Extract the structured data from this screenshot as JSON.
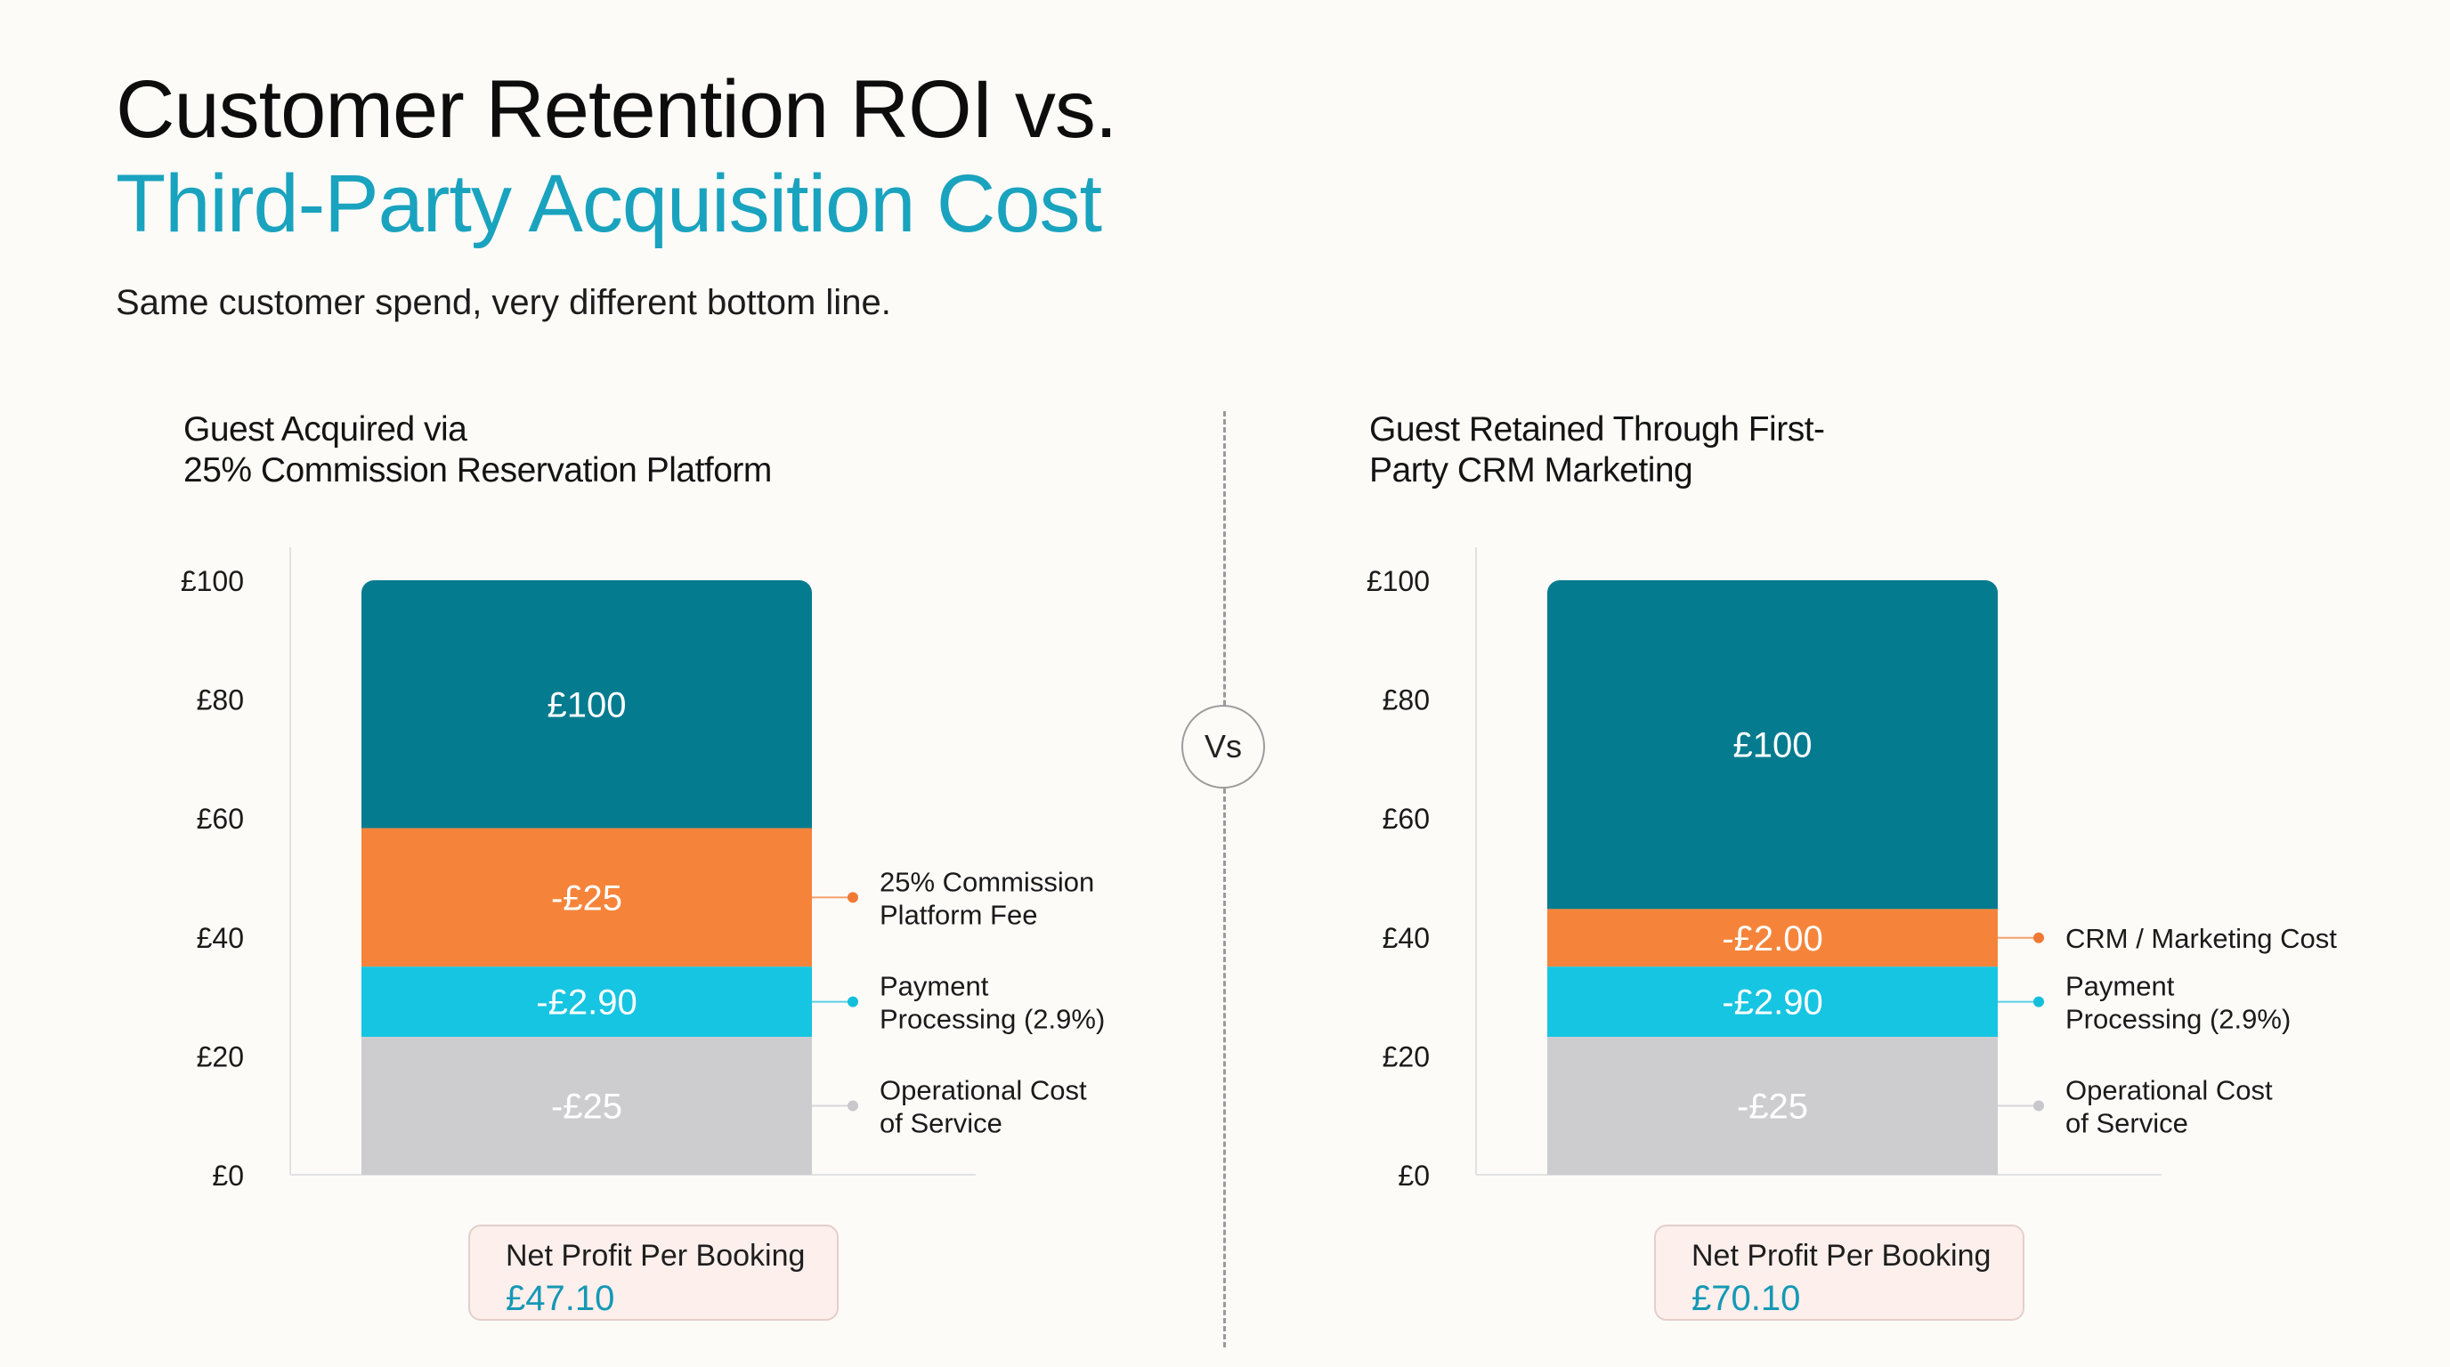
{
  "header": {
    "title_line1": "Customer Retention ROI vs.",
    "title_line2": "Third-Party Acquisition Cost",
    "subtitle": "Same customer spend, very different bottom line.",
    "vs_label": "Vs"
  },
  "colors": {
    "title_accent": "#1aa3be",
    "revenue": "#057b8f",
    "commission_or_crm": "#f5843a",
    "payment": "#16c5e2",
    "operational": "#cdcdd0",
    "net_profit_value": "#1598b5"
  },
  "chart_data": [
    {
      "type": "bar",
      "title": "Guest Acquired via 25% Commission Reservation Platform",
      "title_lines": [
        "Guest Acquired via",
        "25% Commission Reservation Platform"
      ],
      "ylim": [
        0,
        100
      ],
      "yticks": [
        0,
        20,
        40,
        60,
        80,
        100
      ],
      "ytick_labels": [
        "£0",
        "£20",
        "£40",
        "£60",
        "£80",
        "£100"
      ],
      "segments": [
        {
          "label": "£100",
          "value": 41.7,
          "color": "#057b8f",
          "text_color": "#ffffff",
          "legend_lines": []
        },
        {
          "label": "-£25",
          "value": 23.3,
          "color": "#f5843a",
          "text_color": "#ffffff",
          "dot": "#f07a33",
          "legend_lines": [
            "25% Commission",
            "Platform Fee"
          ]
        },
        {
          "label": "-£2.90",
          "value": 11.8,
          "color": "#16c5e2",
          "text_color": "#ffffff",
          "dot": "#14bfdc",
          "legend_lines": [
            "Payment",
            "Processing (2.9%)"
          ]
        },
        {
          "label": "-£25",
          "value": 23.2,
          "color": "#cdcdd0",
          "text_color": "#ffffff",
          "dot": "#c8c8cc",
          "legend_lines": [
            "Operational Cost",
            "of Service"
          ]
        }
      ],
      "net_profit_label": "Net Profit Per Booking",
      "net_profit_value": "£47.10"
    },
    {
      "type": "bar",
      "title": "Guest Retained Through First-Party CRM Marketing",
      "title_lines": [
        "Guest Retained Through First-",
        "Party CRM Marketing"
      ],
      "ylim": [
        0,
        100
      ],
      "yticks": [
        0,
        20,
        40,
        60,
        80,
        100
      ],
      "ytick_labels": [
        "£0",
        "£20",
        "£40",
        "£60",
        "£80",
        "£100"
      ],
      "segments": [
        {
          "label": "£100",
          "value": 55.3,
          "color": "#057b8f",
          "text_color": "#ffffff",
          "legend_lines": []
        },
        {
          "label": "-£2.00",
          "value": 9.7,
          "color": "#f5843a",
          "text_color": "#ffffff",
          "dot": "#f07a33",
          "legend_lines": [
            "CRM / Marketing Cost"
          ]
        },
        {
          "label": "-£2.90",
          "value": 11.8,
          "color": "#16c5e2",
          "text_color": "#ffffff",
          "dot": "#14bfdc",
          "legend_lines": [
            "Payment",
            "Processing (2.9%)"
          ]
        },
        {
          "label": "-£25",
          "value": 23.2,
          "color": "#cdcdd0",
          "text_color": "#ffffff",
          "dot": "#c8c8cc",
          "legend_lines": [
            "Operational Cost",
            "of Service"
          ]
        }
      ],
      "net_profit_label": "Net Profit Per Booking",
      "net_profit_value": "£70.10"
    }
  ]
}
